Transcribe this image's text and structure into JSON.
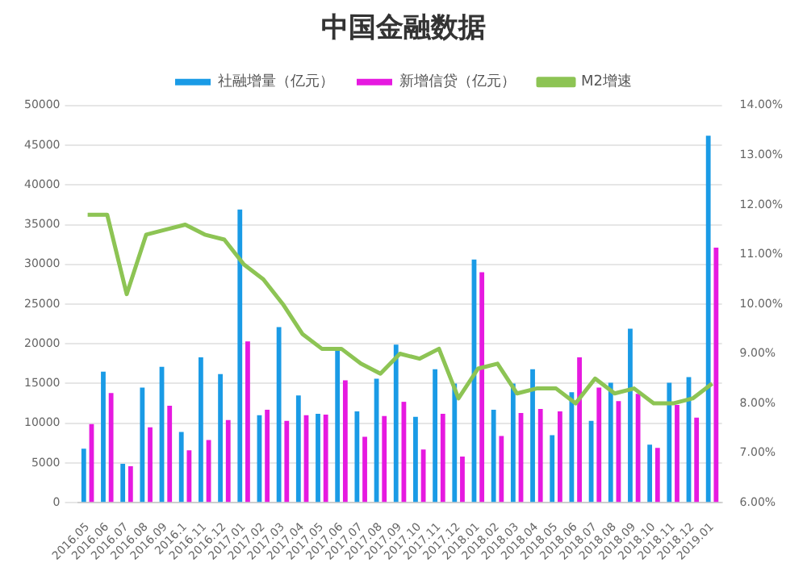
{
  "chart_data": {
    "type": "bar",
    "title": "中国金融数据",
    "categories": [
      "2016.05",
      "2016.06",
      "2016.07",
      "2016.08",
      "2016.09",
      "2016.1",
      "2016.11",
      "2016.12",
      "2017.01",
      "2017.02",
      "2017.03",
      "2017.04",
      "2017.05",
      "2017.06",
      "2017.07",
      "2017.08",
      "2017.09",
      "2017.10",
      "2017.11",
      "2017.12",
      "2018.01",
      "2018.02",
      "2018.03",
      "2018.04",
      "2018.05",
      "2018.06",
      "2018.07",
      "2018.08",
      "2018.09",
      "2018.10",
      "2018.11",
      "2018.12",
      "2019.01"
    ],
    "series": [
      {
        "name": "社融增量（亿元）",
        "color": "#1a9be6",
        "values": [
          6800,
          16500,
          4900,
          14500,
          17100,
          8900,
          18300,
          16200,
          36900,
          11000,
          22100,
          13500,
          11200,
          19100,
          11500,
          15600,
          19900,
          10800,
          16800,
          15000,
          30600,
          11700,
          15000,
          16800,
          8500,
          13900,
          10300,
          15100,
          21900,
          7300,
          15100,
          15800,
          46200
        ]
      },
      {
        "name": "新增信贷（亿元）",
        "color": "#e619e0",
        "values": [
          9900,
          13800,
          4600,
          9500,
          12200,
          6600,
          7900,
          10400,
          20300,
          11700,
          10300,
          11000,
          11100,
          15400,
          8300,
          10900,
          12700,
          6700,
          11200,
          5800,
          29000,
          8400,
          11300,
          11800,
          11500,
          18300,
          14500,
          12800,
          13700,
          6900,
          12300,
          10700,
          32100
        ]
      },
      {
        "name": "M2增速",
        "type": "line",
        "axis": "y2",
        "color": "#8dc454",
        "marker": "none",
        "values": [
          11.8,
          11.8,
          10.2,
          11.4,
          11.5,
          11.6,
          11.4,
          11.3,
          10.8,
          10.5,
          10.0,
          9.4,
          9.1,
          9.1,
          8.8,
          8.6,
          9.0,
          8.9,
          9.1,
          8.1,
          8.7,
          8.8,
          8.2,
          8.3,
          8.3,
          8.0,
          8.5,
          8.2,
          8.3,
          8.0,
          8.0,
          8.1,
          8.4
        ]
      }
    ],
    "ylim": [
      0,
      50000
    ],
    "yticks": [
      0,
      5000,
      10000,
      15000,
      20000,
      25000,
      30000,
      35000,
      40000,
      45000,
      50000
    ],
    "y2lim": [
      6,
      14
    ],
    "y2ticks": [
      {
        "value": 6,
        "label": "6.00%"
      },
      {
        "value": 7,
        "label": "7.00%"
      },
      {
        "value": 8,
        "label": "8.00%"
      },
      {
        "value": 9,
        "label": "9.00%"
      },
      {
        "value": 10,
        "label": "10.00%"
      },
      {
        "value": 11,
        "label": "11.00%"
      },
      {
        "value": 12,
        "label": "12.00%"
      },
      {
        "value": 13,
        "label": "13.00%"
      },
      {
        "value": 14,
        "label": "14.00%"
      }
    ],
    "grid": "y",
    "legend": "top"
  }
}
